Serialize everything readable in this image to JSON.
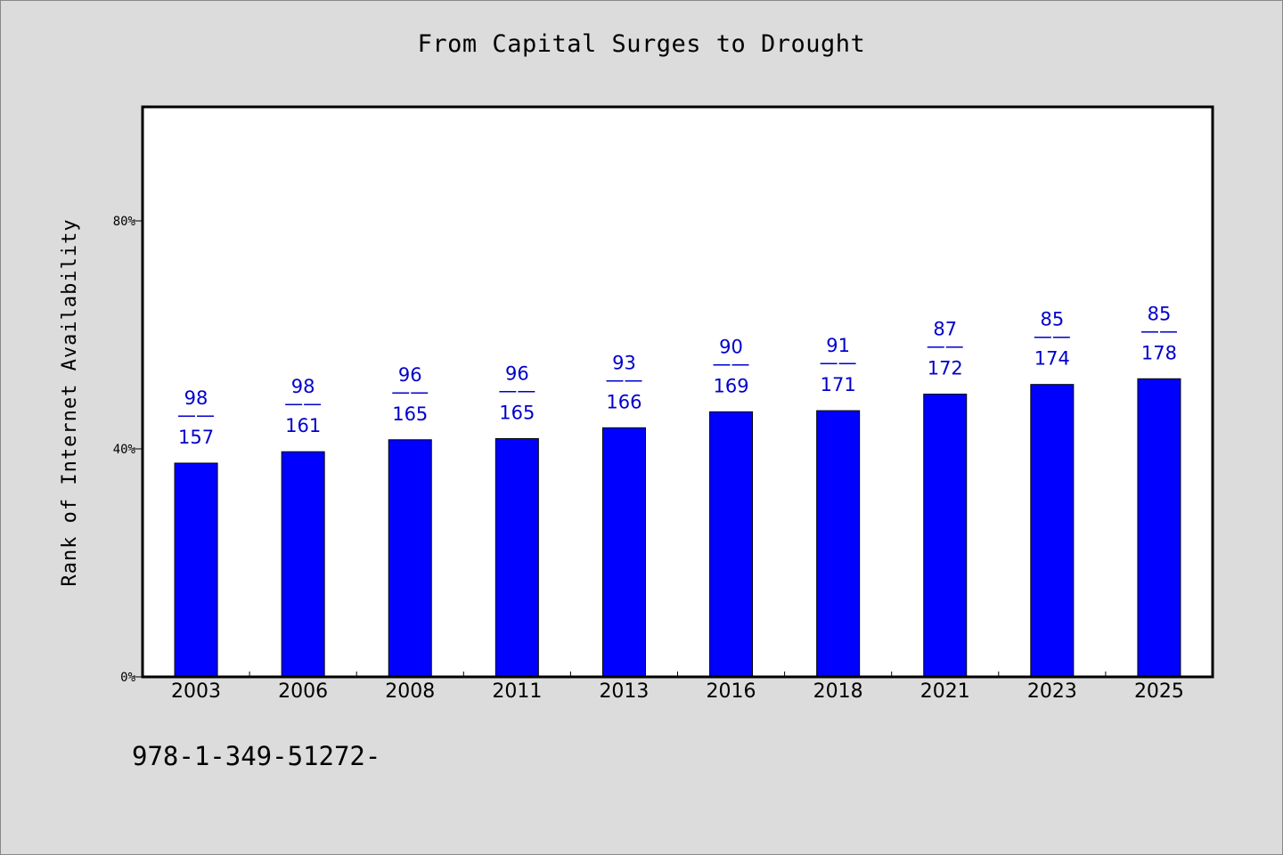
{
  "title": "From Capital Surges to Drought",
  "footer_text": "978-1-349-51272-",
  "chart_data": {
    "type": "bar",
    "title": "From Capital Surges to Drought",
    "xlabel": "",
    "ylabel": "Rank of Internet Availability",
    "ylim": [
      0,
      100
    ],
    "y_ticks": [
      0,
      40,
      80
    ],
    "y_tick_labels": [
      "0%",
      "40%",
      "80%"
    ],
    "grid": false,
    "categories": [
      "2003",
      "2006",
      "2008",
      "2011",
      "2013",
      "2016",
      "2018",
      "2021",
      "2023",
      "2025"
    ],
    "values": [
      37.5,
      39.5,
      41.6,
      41.8,
      43.7,
      46.5,
      46.7,
      49.6,
      51.3,
      52.3
    ],
    "data_labels": [
      {
        "top": "98",
        "bottom": "157"
      },
      {
        "top": "98",
        "bottom": "161"
      },
      {
        "top": "96",
        "bottom": "165"
      },
      {
        "top": "96",
        "bottom": "165"
      },
      {
        "top": "93",
        "bottom": "166"
      },
      {
        "top": "90",
        "bottom": "169"
      },
      {
        "top": "91",
        "bottom": "171"
      },
      {
        "top": "87",
        "bottom": "172"
      },
      {
        "top": "85",
        "bottom": "174"
      },
      {
        "top": "85",
        "bottom": "178"
      }
    ],
    "label_separator": "——",
    "colors": {
      "bar": "#0000ff",
      "label": "#0000cc",
      "plot_bg": "#ffffff",
      "page_bg": "#dcdcdc"
    }
  }
}
